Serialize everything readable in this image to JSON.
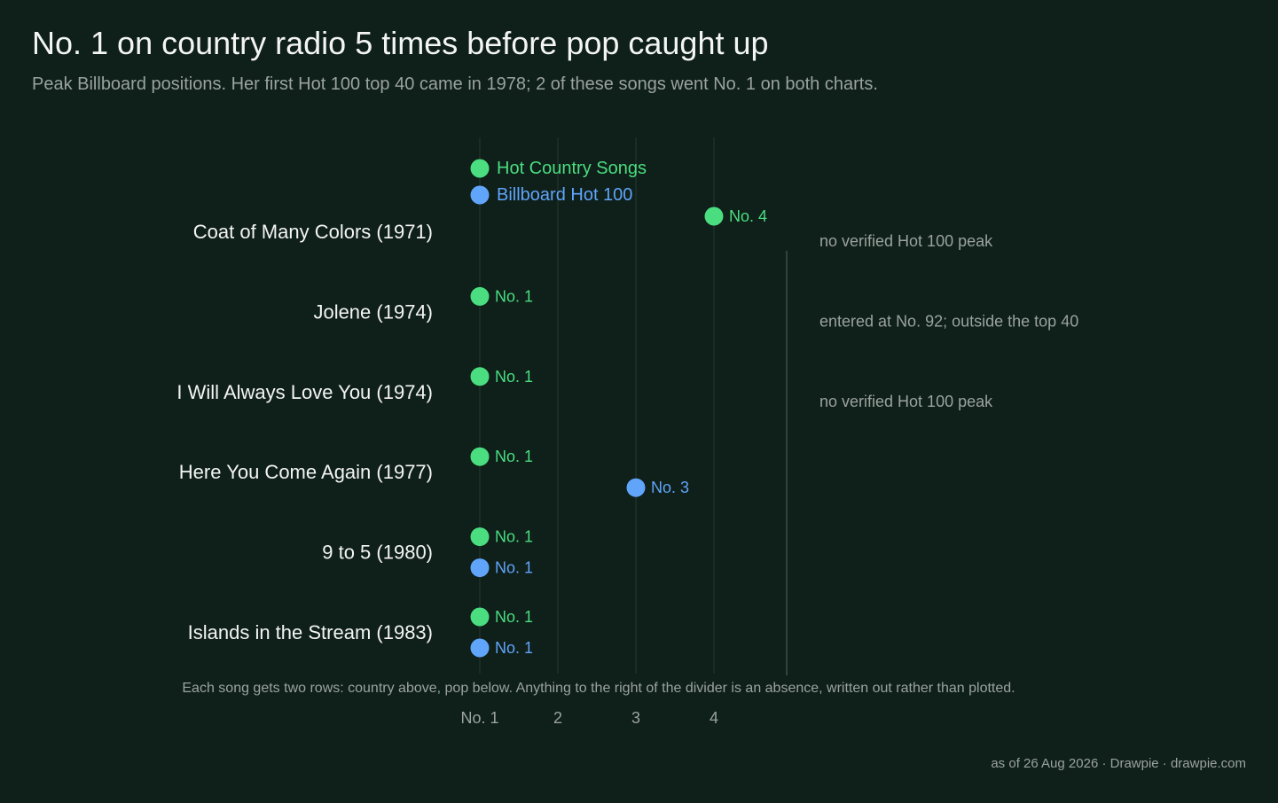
{
  "title": "No. 1 on country radio 5 times before pop caught up",
  "subtitle": "Peak Billboard positions. Her first Hot 100 top 40 came in 1978; 2 of these songs went No. 1 on both charts.",
  "footer": "as of 26 Aug 2026  ·  Drawpie · drawpie.com",
  "colors": {
    "background": "#0f1f19",
    "country": "#4ade80",
    "pop": "#60a5fa",
    "text": "#f3f5f4",
    "muted": "#9aa39f",
    "gridline": "#1f3129",
    "divider": "#33433c"
  },
  "chart_data": {
    "type": "scatter",
    "x_tick_labels": [
      "No. 1",
      "2",
      "3",
      "4"
    ],
    "x_ticks": [
      1,
      2,
      3,
      4
    ],
    "x_range": [
      1,
      4
    ],
    "series": [
      {
        "name": "Hot Country Songs",
        "key": "country"
      },
      {
        "name": "Billboard Hot 100",
        "key": "pop"
      }
    ],
    "songs": [
      {
        "title": "Coat of Many Colors",
        "year": "(1971)",
        "country": 4,
        "country_label": "No. 4",
        "pop": null,
        "pop_note": "no verified Hot 100 peak"
      },
      {
        "title": "Jolene",
        "year": "(1974)",
        "country": 1,
        "country_label": "No. 1",
        "pop": null,
        "pop_note": "entered at No. 92; outside the top 40"
      },
      {
        "title": "I Will Always Love You",
        "year": "(1974)",
        "country": 1,
        "country_label": "No. 1",
        "pop": null,
        "pop_note": "no verified Hot 100 peak"
      },
      {
        "title": "Here You Come Again",
        "year": "(1977)",
        "country": 1,
        "country_label": "No. 1",
        "pop": 3,
        "pop_label": "No. 3"
      },
      {
        "title": "9 to 5",
        "year": "(1980)",
        "country": 1,
        "country_label": "No. 1",
        "pop": 1,
        "pop_label": "No. 1"
      },
      {
        "title": "Islands in the Stream",
        "year": "(1983)",
        "country": 1,
        "country_label": "No. 1",
        "pop": 1,
        "pop_label": "No. 1"
      }
    ],
    "note": "Each song gets two rows: country above, pop below. Anything to the right of the divider is an absence, written out rather than plotted.",
    "legend_position": "top-left",
    "grid": true
  }
}
